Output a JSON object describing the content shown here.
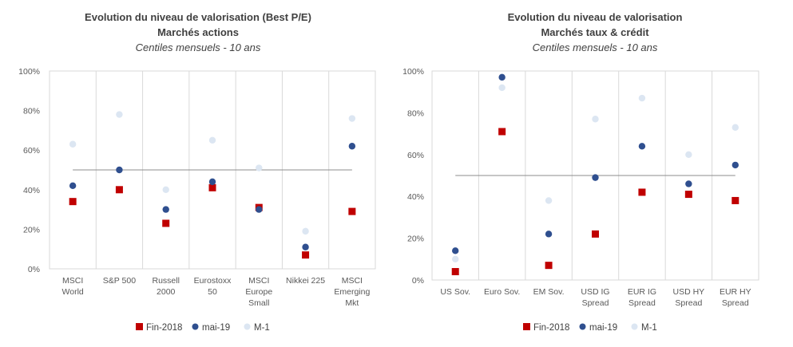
{
  "chart_data": [
    {
      "type": "scatter",
      "title": "Evolution du niveau de valorisation (Best P/E)",
      "subtitle": "Marchés actions",
      "subtitle2": "Centiles mensuels - 10 ans",
      "categories": [
        [
          "MSCI",
          "World"
        ],
        [
          "S&P 500"
        ],
        [
          "Russell",
          "2000"
        ],
        [
          "Eurostoxx",
          "50"
        ],
        [
          "MSCI",
          "Europe",
          "Small"
        ],
        [
          "Nikkei 225"
        ],
        [
          "MSCI",
          "Emerging",
          "Mkt"
        ]
      ],
      "series": [
        {
          "name": "Fin-2018",
          "marker": "square",
          "color": "#c00000",
          "values": [
            34,
            40,
            23,
            41,
            31,
            7,
            29
          ]
        },
        {
          "name": "mai-19",
          "marker": "circle",
          "color": "#2f4f8f",
          "values": [
            42,
            50,
            30,
            44,
            30,
            11,
            62
          ]
        },
        {
          "name": "M-1",
          "marker": "circle",
          "color": "#dce6f2",
          "values": [
            63,
            78,
            40,
            65,
            51,
            19,
            76
          ]
        }
      ],
      "reference_line": 50,
      "yticks": [
        "0%",
        "20%",
        "40%",
        "60%",
        "80%",
        "100%"
      ],
      "ylim": [
        0,
        100
      ],
      "grid": "vertical",
      "legend": "bottom"
    },
    {
      "type": "scatter",
      "title": "Evolution du niveau de valorisation",
      "subtitle": "Marchés taux & crédit",
      "subtitle2": "Centiles mensuels - 10 ans",
      "categories": [
        [
          "US Sov."
        ],
        [
          "Euro Sov."
        ],
        [
          "EM Sov."
        ],
        [
          "USD IG",
          "Spread"
        ],
        [
          "EUR IG",
          "Spread"
        ],
        [
          "USD HY",
          "Spread"
        ],
        [
          "EUR HY",
          "Spread"
        ]
      ],
      "series": [
        {
          "name": "Fin-2018",
          "marker": "square",
          "color": "#c00000",
          "values": [
            4,
            71,
            7,
            22,
            42,
            41,
            38
          ]
        },
        {
          "name": "mai-19",
          "marker": "circle",
          "color": "#2f4f8f",
          "values": [
            14,
            97,
            22,
            49,
            64,
            46,
            55
          ]
        },
        {
          "name": "M-1",
          "marker": "circle",
          "color": "#dce6f2",
          "values": [
            10,
            92,
            38,
            77,
            87,
            60,
            73
          ]
        }
      ],
      "reference_line": 50,
      "yticks": [
        "0%",
        "20%",
        "40%",
        "60%",
        "80%",
        "100%"
      ],
      "ylim": [
        0,
        100
      ],
      "grid": "vertical",
      "legend": "bottom"
    }
  ]
}
